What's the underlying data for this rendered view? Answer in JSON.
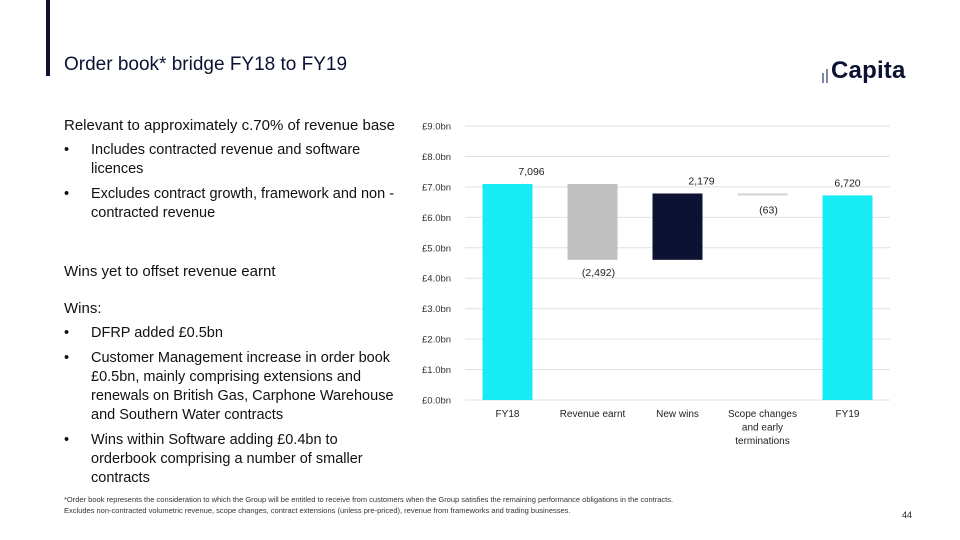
{
  "slide": {
    "title": "Order book* bridge FY18 to FY19",
    "logo_text": "Capita",
    "page_number": "44",
    "footnote": "*Order book represents the consideration to which the Group will be entitled to receive from customers when the Group satisfies the remaining performance obligations in the contracts. Excludes non-contracted volumetric revenue, scope changes, contract extensions (unless pre-priced), revenue from frameworks and trading businesses."
  },
  "left_panel": {
    "section1_heading": "Relevant to approximately c.70% of revenue base",
    "section1_bullets": [
      "Includes contracted revenue and software licences",
      "Excludes contract growth, framework and non -contracted revenue"
    ],
    "section2_heading": "Wins yet to offset revenue earnt",
    "section3_heading": "Wins:",
    "section3_bullets": [
      "DFRP added £0.5bn",
      "Customer Management increase in order book £0.5bn, mainly comprising extensions and renewals on British Gas, Carphone Warehouse and Southern Water contracts",
      "Wins within Software adding £0.4bn to orderbook comprising a number of smaller contracts"
    ]
  },
  "colors": {
    "navy": "#0c1233",
    "cyan": "#17ebf4",
    "grey": "#c0c0c0",
    "gridline": "#e0e0e0"
  },
  "chart_data": {
    "type": "bar",
    "subtype": "waterfall",
    "categories": [
      "FY18",
      "Revenue earnt",
      "New wins",
      "Scope changes and early terminations",
      "FY19"
    ],
    "values": [
      7096,
      -2492,
      2179,
      -63,
      6720
    ],
    "data_labels": [
      "7,096",
      "(2,492)",
      "2,179",
      "(63)",
      "6,720"
    ],
    "bar_roles": [
      "total",
      "decrease",
      "increase",
      "decrease",
      "total"
    ],
    "y_ticks": [
      "£0.0bn",
      "£1.0bn",
      "£2.0bn",
      "£3.0bn",
      "£4.0bn",
      "£5.0bn",
      "£6.0bn",
      "£7.0bn",
      "£8.0bn",
      "£9.0bn"
    ],
    "ylim": [
      0,
      9000
    ],
    "unit": "£m",
    "grid": true,
    "legend": "none"
  }
}
